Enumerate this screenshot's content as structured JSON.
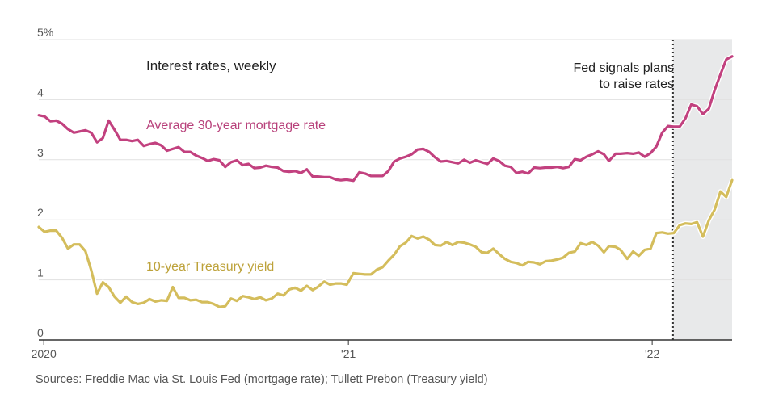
{
  "source_note": "Sources: Freddie Mac via St. Louis Fed (mortgage rate); Tullett Prebon (Treasury yield)",
  "chart_data": {
    "type": "line",
    "title": "Interest rates, weekly",
    "y_tick_labels": [
      "0",
      "1",
      "2",
      "3",
      "4",
      "5%"
    ],
    "ylim": [
      0,
      5
    ],
    "x_tick_labels": [
      "2020",
      "'21",
      "'22"
    ],
    "xlim": [
      "2019-12-26",
      "2022-04-07"
    ],
    "grid": true,
    "annotation": {
      "text_lines": [
        "Fed signals plans",
        "to raise rates"
      ],
      "date": "2022-01-26"
    },
    "shaded_region": {
      "start": "2022-01-26",
      "end": "2022-04-07",
      "color": "#e8e9ea"
    },
    "series": [
      {
        "name": "Average 30-year mortgage rate",
        "color": "#c2417f",
        "x": [
          "2019-12-26",
          "2020-01-02",
          "2020-01-09",
          "2020-01-16",
          "2020-01-23",
          "2020-01-30",
          "2020-02-06",
          "2020-02-13",
          "2020-02-20",
          "2020-02-27",
          "2020-03-05",
          "2020-03-12",
          "2020-03-19",
          "2020-03-26",
          "2020-04-02",
          "2020-04-09",
          "2020-04-16",
          "2020-04-23",
          "2020-04-30",
          "2020-05-07",
          "2020-05-14",
          "2020-05-21",
          "2020-05-28",
          "2020-06-04",
          "2020-06-11",
          "2020-06-18",
          "2020-06-25",
          "2020-07-02",
          "2020-07-09",
          "2020-07-16",
          "2020-07-23",
          "2020-07-30",
          "2020-08-06",
          "2020-08-13",
          "2020-08-20",
          "2020-08-27",
          "2020-09-03",
          "2020-09-10",
          "2020-09-17",
          "2020-09-24",
          "2020-10-01",
          "2020-10-08",
          "2020-10-15",
          "2020-10-22",
          "2020-10-29",
          "2020-11-05",
          "2020-11-12",
          "2020-11-19",
          "2020-11-25",
          "2020-12-03",
          "2020-12-10",
          "2020-12-17",
          "2020-12-23",
          "2020-12-30",
          "2021-01-07",
          "2021-01-14",
          "2021-01-21",
          "2021-01-28",
          "2021-02-04",
          "2021-02-11",
          "2021-02-18",
          "2021-02-25",
          "2021-03-04",
          "2021-03-11",
          "2021-03-18",
          "2021-03-25",
          "2021-04-01",
          "2021-04-08",
          "2021-04-15",
          "2021-04-22",
          "2021-04-29",
          "2021-05-06",
          "2021-05-13",
          "2021-05-20",
          "2021-05-27",
          "2021-06-03",
          "2021-06-10",
          "2021-06-17",
          "2021-06-24",
          "2021-07-01",
          "2021-07-08",
          "2021-07-15",
          "2021-07-22",
          "2021-07-29",
          "2021-08-05",
          "2021-08-12",
          "2021-08-19",
          "2021-08-26",
          "2021-09-02",
          "2021-09-09",
          "2021-09-16",
          "2021-09-23",
          "2021-09-30",
          "2021-10-07",
          "2021-10-14",
          "2021-10-21",
          "2021-10-28",
          "2021-11-04",
          "2021-11-10",
          "2021-11-18",
          "2021-11-24",
          "2021-12-02",
          "2021-12-09",
          "2021-12-16",
          "2021-12-23",
          "2021-12-30",
          "2022-01-06",
          "2022-01-13",
          "2022-01-20",
          "2022-01-27",
          "2022-02-03",
          "2022-02-10",
          "2022-02-17",
          "2022-02-24",
          "2022-03-03",
          "2022-03-10",
          "2022-03-17",
          "2022-03-24",
          "2022-03-31",
          "2022-04-07"
        ],
        "values": [
          3.74,
          3.72,
          3.64,
          3.65,
          3.6,
          3.51,
          3.45,
          3.47,
          3.49,
          3.45,
          3.29,
          3.36,
          3.65,
          3.5,
          3.33,
          3.33,
          3.31,
          3.33,
          3.23,
          3.26,
          3.28,
          3.24,
          3.15,
          3.18,
          3.21,
          3.13,
          3.13,
          3.07,
          3.03,
          2.98,
          3.01,
          2.99,
          2.88,
          2.96,
          2.99,
          2.91,
          2.93,
          2.86,
          2.87,
          2.9,
          2.88,
          2.87,
          2.81,
          2.8,
          2.81,
          2.78,
          2.84,
          2.72,
          2.72,
          2.71,
          2.71,
          2.67,
          2.66,
          2.67,
          2.65,
          2.79,
          2.77,
          2.73,
          2.73,
          2.73,
          2.81,
          2.97,
          3.02,
          3.05,
          3.09,
          3.17,
          3.18,
          3.13,
          3.04,
          2.97,
          2.98,
          2.96,
          2.94,
          3.0,
          2.95,
          2.99,
          2.96,
          2.93,
          3.02,
          2.98,
          2.9,
          2.88,
          2.78,
          2.8,
          2.77,
          2.87,
          2.86,
          2.87,
          2.87,
          2.88,
          2.86,
          2.88,
          3.01,
          2.99,
          3.05,
          3.09,
          3.14,
          3.09,
          2.98,
          3.1,
          3.1,
          3.11,
          3.1,
          3.12,
          3.05,
          3.11,
          3.22,
          3.45,
          3.56,
          3.55,
          3.55,
          3.69,
          3.92,
          3.89,
          3.76,
          3.85,
          4.16,
          4.42,
          4.67,
          4.72
        ]
      },
      {
        "name": "10-year Treasury yield",
        "color": "#d4bd5c",
        "x": [
          "2019-12-26",
          "2020-01-02",
          "2020-01-09",
          "2020-01-16",
          "2020-01-23",
          "2020-01-30",
          "2020-02-06",
          "2020-02-13",
          "2020-02-20",
          "2020-02-27",
          "2020-03-05",
          "2020-03-12",
          "2020-03-19",
          "2020-03-26",
          "2020-04-02",
          "2020-04-09",
          "2020-04-16",
          "2020-04-23",
          "2020-04-30",
          "2020-05-07",
          "2020-05-14",
          "2020-05-21",
          "2020-05-28",
          "2020-06-04",
          "2020-06-11",
          "2020-06-18",
          "2020-06-25",
          "2020-07-02",
          "2020-07-09",
          "2020-07-16",
          "2020-07-23",
          "2020-07-30",
          "2020-08-06",
          "2020-08-13",
          "2020-08-20",
          "2020-08-27",
          "2020-09-03",
          "2020-09-10",
          "2020-09-17",
          "2020-09-24",
          "2020-10-01",
          "2020-10-08",
          "2020-10-15",
          "2020-10-22",
          "2020-10-29",
          "2020-11-05",
          "2020-11-12",
          "2020-11-19",
          "2020-11-25",
          "2020-12-03",
          "2020-12-10",
          "2020-12-17",
          "2020-12-23",
          "2020-12-30",
          "2021-01-07",
          "2021-01-14",
          "2021-01-21",
          "2021-01-28",
          "2021-02-04",
          "2021-02-11",
          "2021-02-18",
          "2021-02-25",
          "2021-03-04",
          "2021-03-11",
          "2021-03-18",
          "2021-03-25",
          "2021-04-01",
          "2021-04-08",
          "2021-04-15",
          "2021-04-22",
          "2021-04-29",
          "2021-05-06",
          "2021-05-13",
          "2021-05-20",
          "2021-05-27",
          "2021-06-03",
          "2021-06-10",
          "2021-06-17",
          "2021-06-24",
          "2021-07-01",
          "2021-07-08",
          "2021-07-15",
          "2021-07-22",
          "2021-07-29",
          "2021-08-05",
          "2021-08-12",
          "2021-08-19",
          "2021-08-26",
          "2021-09-02",
          "2021-09-09",
          "2021-09-16",
          "2021-09-23",
          "2021-09-30",
          "2021-10-07",
          "2021-10-14",
          "2021-10-21",
          "2021-10-28",
          "2021-11-04",
          "2021-11-10",
          "2021-11-18",
          "2021-11-24",
          "2021-12-02",
          "2021-12-09",
          "2021-12-16",
          "2021-12-23",
          "2021-12-30",
          "2022-01-06",
          "2022-01-13",
          "2022-01-20",
          "2022-01-27",
          "2022-02-03",
          "2022-02-10",
          "2022-02-17",
          "2022-02-24",
          "2022-03-03",
          "2022-03-10",
          "2022-03-17",
          "2022-03-24",
          "2022-03-31",
          "2022-04-07"
        ],
        "values": [
          1.88,
          1.8,
          1.82,
          1.82,
          1.7,
          1.52,
          1.59,
          1.59,
          1.48,
          1.16,
          0.77,
          0.96,
          0.88,
          0.72,
          0.62,
          0.72,
          0.63,
          0.6,
          0.62,
          0.68,
          0.64,
          0.66,
          0.65,
          0.88,
          0.7,
          0.7,
          0.66,
          0.67,
          0.63,
          0.63,
          0.6,
          0.55,
          0.56,
          0.69,
          0.65,
          0.73,
          0.71,
          0.68,
          0.71,
          0.66,
          0.69,
          0.77,
          0.74,
          0.84,
          0.87,
          0.82,
          0.9,
          0.83,
          0.88,
          0.97,
          0.92,
          0.94,
          0.94,
          0.92,
          1.11,
          1.1,
          1.09,
          1.09,
          1.17,
          1.21,
          1.32,
          1.42,
          1.56,
          1.62,
          1.73,
          1.69,
          1.72,
          1.67,
          1.58,
          1.57,
          1.63,
          1.58,
          1.63,
          1.62,
          1.59,
          1.55,
          1.46,
          1.45,
          1.52,
          1.43,
          1.35,
          1.3,
          1.28,
          1.24,
          1.3,
          1.29,
          1.26,
          1.31,
          1.32,
          1.34,
          1.37,
          1.45,
          1.47,
          1.61,
          1.58,
          1.63,
          1.57,
          1.46,
          1.56,
          1.55,
          1.5,
          1.35,
          1.47,
          1.4,
          1.5,
          1.52,
          1.78,
          1.79,
          1.77,
          1.78,
          1.91,
          1.94,
          1.93,
          1.96,
          1.72,
          1.99,
          2.17,
          2.47,
          2.38,
          2.66
        ]
      }
    ]
  }
}
